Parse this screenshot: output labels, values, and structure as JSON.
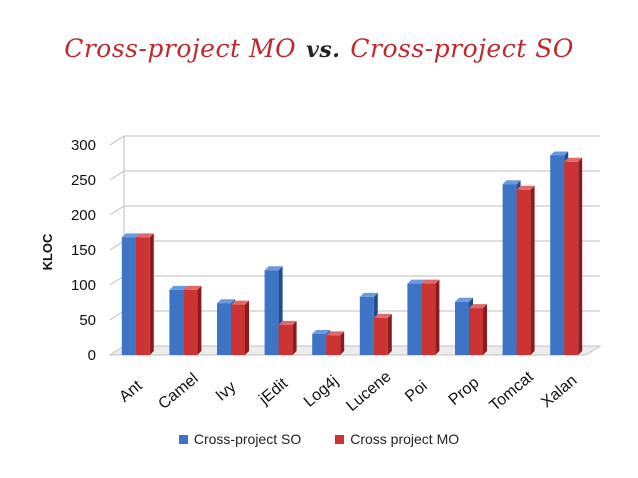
{
  "title": {
    "left": "Cross-project MO",
    "vs": "vs.",
    "right": "Cross-project SO"
  },
  "colors": {
    "so": "#3d74c4",
    "mo": "#cc3333",
    "title": "#c0282c"
  },
  "chart_data": {
    "type": "bar",
    "title": "Cross-project MO vs. Cross-project SO",
    "xlabel": "",
    "ylabel": "KLOC",
    "ylim": [
      0,
      300
    ],
    "yticks": [
      0,
      50,
      100,
      150,
      200,
      250,
      300
    ],
    "grid": true,
    "legend_position": "bottom",
    "categories": [
      "Ant",
      "Camel",
      "Ivy",
      "jEdit",
      "Log4j",
      "Lucene",
      "Poi",
      "Prop",
      "Tomcat",
      "Xalan"
    ],
    "series": [
      {
        "name": "Cross-project SO",
        "values": [
          168,
          93,
          74,
          121,
          30,
          83,
          102,
          76,
          244,
          285
        ]
      },
      {
        "name": "Cross project MO",
        "values": [
          168,
          93,
          72,
          43,
          28,
          53,
          102,
          67,
          236,
          276
        ]
      }
    ]
  }
}
